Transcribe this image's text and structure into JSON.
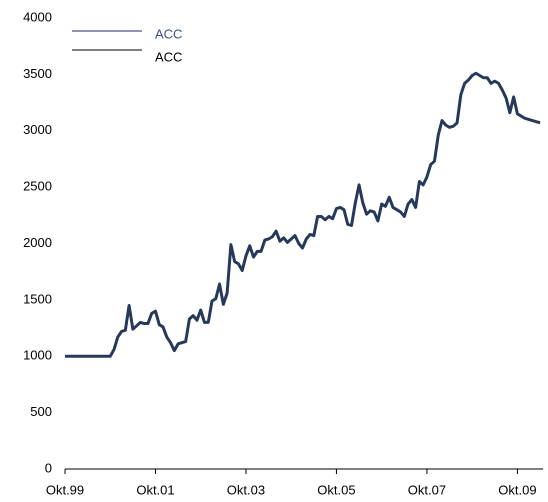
{
  "chart_data": {
    "type": "line",
    "categories": [
      "Okt.99",
      null,
      null,
      null,
      null,
      null,
      null,
      null,
      null,
      null,
      null,
      null,
      null,
      null,
      null,
      null,
      null,
      null,
      null,
      null,
      null,
      null,
      null,
      null,
      "Okt.01",
      null,
      null,
      null,
      null,
      null,
      null,
      null,
      null,
      null,
      null,
      null,
      null,
      null,
      null,
      null,
      null,
      null,
      null,
      null,
      null,
      null,
      null,
      null,
      "Okt.03",
      null,
      null,
      null,
      null,
      null,
      null,
      null,
      null,
      null,
      null,
      null,
      null,
      null,
      null,
      null,
      null,
      null,
      null,
      null,
      null,
      null,
      null,
      null,
      "Okt.05",
      null,
      null,
      null,
      null,
      null,
      null,
      null,
      null,
      null,
      null,
      null,
      null,
      null,
      null,
      null,
      null,
      null,
      null,
      null,
      null,
      null,
      null,
      null,
      "Okt.07",
      null,
      null,
      null,
      null,
      null,
      null,
      null,
      null,
      null,
      null,
      null,
      null,
      null,
      null,
      null,
      null,
      null,
      null,
      null,
      null,
      null,
      null,
      null,
      "Okt.09",
      null,
      null,
      null,
      null,
      null,
      null
    ],
    "series": [
      {
        "name": "ACC",
        "color": "#1f2a6e",
        "values": [
          1000,
          1000,
          1000,
          1000,
          1000,
          1000,
          1000,
          1000,
          1000,
          1000,
          1000,
          1000,
          1000,
          1060,
          1170,
          1220,
          1230,
          1450,
          1240,
          1270,
          1300,
          1290,
          1290,
          1380,
          1400,
          1280,
          1260,
          1170,
          1120,
          1050,
          1110,
          1120,
          1130,
          1330,
          1360,
          1320,
          1410,
          1300,
          1300,
          1490,
          1510,
          1640,
          1460,
          1560,
          1990,
          1840,
          1820,
          1760,
          1890,
          1980,
          1880,
          1930,
          1930,
          2030,
          2040,
          2060,
          2110,
          2020,
          2050,
          2010,
          2040,
          2070,
          2000,
          1960,
          2040,
          2080,
          2070,
          2240,
          2240,
          2210,
          2240,
          2220,
          2310,
          2320,
          2300,
          2170,
          2160,
          2360,
          2520,
          2360,
          2260,
          2290,
          2280,
          2200,
          2350,
          2330,
          2410,
          2320,
          2300,
          2280,
          2240,
          2350,
          2390,
          2320,
          2550,
          2520,
          2590,
          2700,
          2730,
          2960,
          3090,
          3050,
          3030,
          3040,
          3070,
          3320,
          3420,
          3450,
          3490,
          3510,
          3490,
          3470,
          3470,
          3420,
          3440,
          3420,
          3360,
          3290,
          3160,
          3300,
          3150,
          3130,
          3110,
          3100,
          3090,
          3080,
          3070
        ]
      },
      {
        "name": "ACC",
        "color": "#000000",
        "values": [
          1000,
          1000,
          1000,
          1000,
          1000,
          1000,
          1000,
          1000,
          1000,
          1000,
          1000,
          1000,
          1000,
          1060,
          1170,
          1220,
          1230,
          1450,
          1240,
          1270,
          1300,
          1290,
          1290,
          1380,
          1400,
          1280,
          1260,
          1170,
          1120,
          1050,
          1110,
          1120,
          1130,
          1330,
          1360,
          1320,
          1410,
          1300,
          1300,
          1490,
          1510,
          1640,
          1460,
          1560,
          1990,
          1840,
          1820,
          1760,
          1890,
          1980,
          1880,
          1930,
          1930,
          2030,
          2040,
          2060,
          2110,
          2020,
          2050,
          2010,
          2040,
          2070,
          2000,
          1960,
          2040,
          2080,
          2070,
          2240,
          2240,
          2210,
          2240,
          2220,
          2310,
          2320,
          2300,
          2170,
          2160,
          2360,
          2520,
          2360,
          2260,
          2290,
          2280,
          2200,
          2350,
          2330,
          2410,
          2320,
          2300,
          2280,
          2240,
          2350,
          2390,
          2320,
          2550,
          2520,
          2590,
          2700,
          2730,
          2960,
          3090,
          3050,
          3030,
          3040,
          3070,
          3320,
          3420,
          3450,
          3490,
          3510,
          3490,
          3470,
          3470,
          3420,
          3440,
          3420,
          3360,
          3290,
          3160,
          3300,
          3150,
          3130,
          3110,
          3100,
          3090,
          3080,
          3070
        ]
      }
    ],
    "ylim": [
      0,
      4000
    ],
    "yticks": [
      0,
      500,
      1000,
      1500,
      2000,
      2500,
      3000,
      3500,
      4000
    ],
    "grid": false,
    "legend": "upper left"
  }
}
